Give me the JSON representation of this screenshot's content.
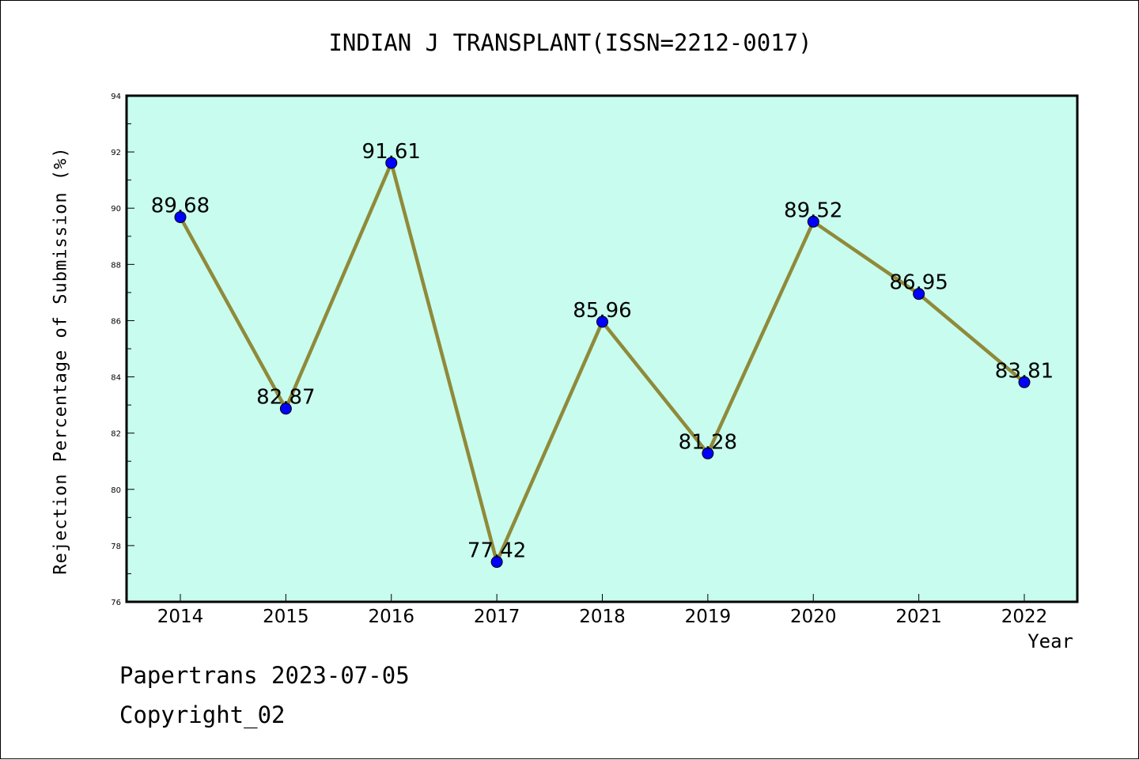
{
  "chart_data": {
    "type": "line",
    "title": "INDIAN J TRANSPLANT(ISSN=2212-0017)",
    "xlabel": "Year",
    "ylabel": "Rejection Percentage of Submission (%)",
    "categories": [
      "2014",
      "2015",
      "2016",
      "2017",
      "2018",
      "2019",
      "2020",
      "2021",
      "2022"
    ],
    "series": [
      {
        "values": [
          89.68,
          82.87,
          91.61,
          77.42,
          85.96,
          81.28,
          89.52,
          86.95,
          83.81
        ]
      }
    ],
    "data_labels": [
      "89.68",
      "82.87",
      "91.61",
      "77.42",
      "85.96",
      "81.28",
      "89.52",
      "86.95",
      "83.81"
    ],
    "ylim": [
      76,
      94
    ],
    "yticks": [
      "76",
      "78",
      "80",
      "82",
      "84",
      "86",
      "88",
      "90",
      "92",
      "94"
    ],
    "grid": false,
    "legend": "none",
    "colors": {
      "plot_background": "#c8fcee",
      "line": "#8f8a3a",
      "marker": "#0000ff"
    }
  },
  "footer": {
    "line1": "Papertrans 2023-07-05",
    "line2": "Copyright_02"
  }
}
